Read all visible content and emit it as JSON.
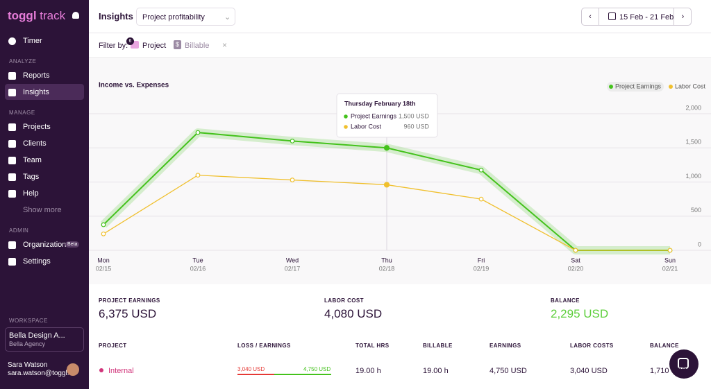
{
  "sidebar": {
    "logo": "toggl",
    "logo_suffix": "track",
    "items": [
      {
        "label": "Timer"
      },
      {
        "label": "Reports"
      },
      {
        "label": "Insights"
      },
      {
        "label": "Projects"
      },
      {
        "label": "Clients"
      },
      {
        "label": "Team"
      },
      {
        "label": "Tags"
      },
      {
        "label": "Help"
      },
      {
        "label": "Show more"
      },
      {
        "label": "Organization",
        "badge": "Beta"
      },
      {
        "label": "Settings"
      }
    ],
    "sections": [
      "ANALYZE",
      "MANAGE",
      "ADMIN",
      "WORKSPACE"
    ],
    "workspace": {
      "name": "Bella Design A...",
      "org": "Bella Agency"
    },
    "user": {
      "name": "Sara Watson",
      "email": "sara.watson@toggl...."
    }
  },
  "header": {
    "title": "Insights",
    "report": "Project profitability",
    "date_range": "15 Feb - 21 Feb"
  },
  "filter": {
    "label": "Filter by:",
    "project_count": "6",
    "project": "Project",
    "billable": "Billable"
  },
  "chart_data": {
    "type": "line",
    "title": "Income vs. Expenses",
    "categories": [
      "Mon",
      "Tue",
      "Wed",
      "Thu",
      "Fri",
      "Sat",
      "Sun"
    ],
    "dates": [
      "02/15",
      "02/16",
      "02/17",
      "02/18",
      "02/19",
      "02/20",
      "02/21"
    ],
    "series": [
      {
        "name": "Project Earnings",
        "color": "#44c21c",
        "values": [
          375,
          1725,
          1600,
          1500,
          1175,
          0,
          0
        ]
      },
      {
        "name": "Labor Cost",
        "color": "#f0c02e",
        "values": [
          240,
          1100,
          1030,
          960,
          750,
          0,
          0
        ]
      }
    ],
    "ylim": [
      0,
      2000
    ],
    "yticks": [
      0,
      500,
      {
        "value": 1000,
        "label": "1,000"
      },
      {
        "value": 1500,
        "label": "1,500"
      },
      {
        "value": 2000,
        "label": "2,000"
      }
    ],
    "grid": true,
    "legend": "top-right",
    "tooltip": {
      "title": "Thursday February 18th",
      "rows": [
        [
          "Project Earnings",
          "1,500 USD"
        ],
        [
          "Labor Cost",
          "960 USD"
        ]
      ]
    }
  },
  "summary": [
    {
      "label": "PROJECT EARNINGS",
      "value": "6,375 USD"
    },
    {
      "label": "LABOR COST",
      "value": "4,080 USD"
    },
    {
      "label": "BALANCE",
      "value": "2,295 USD"
    }
  ],
  "table": {
    "columns": [
      "PROJECT",
      "LOSS / EARNINGS",
      "TOTAL HRS",
      "BILLABLE",
      "EARNINGS",
      "LABOR COSTS",
      "BALANCE"
    ],
    "rows": [
      {
        "project": "Internal",
        "loss": "3,040 USD",
        "earn": "4,750 USD",
        "cells": [
          "19.00 h",
          "19.00 h",
          "4,750 USD",
          "3,040 USD",
          "1,710 USD"
        ]
      }
    ]
  }
}
